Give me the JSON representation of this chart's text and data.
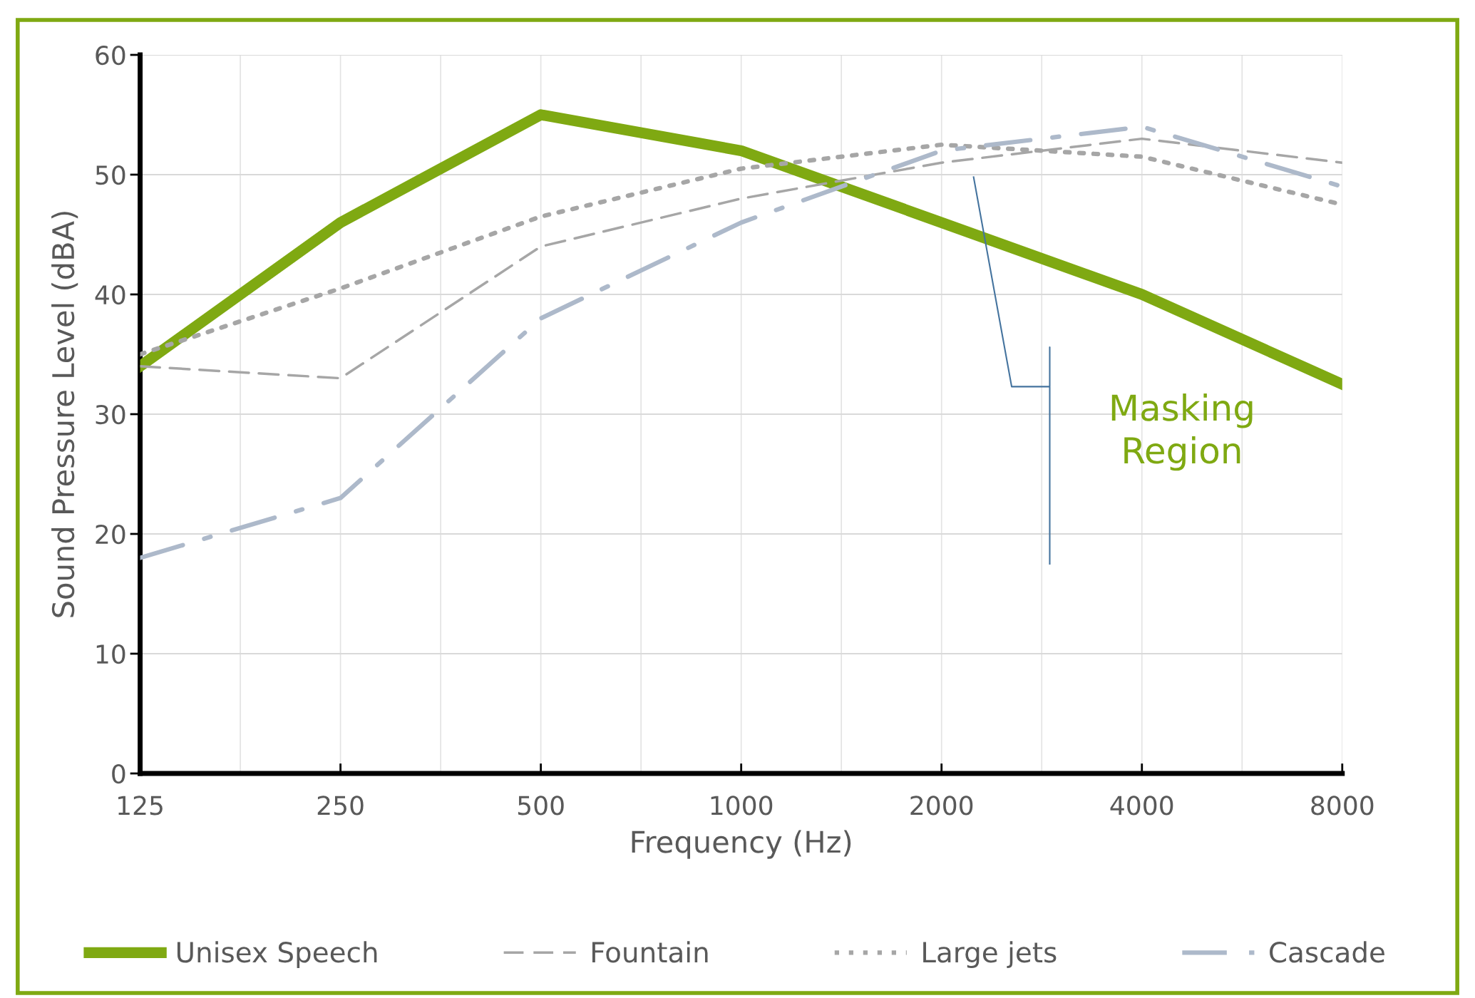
{
  "chart_data": {
    "type": "line",
    "xlabel": "Frequency (Hz)",
    "ylabel": "Sound Pressure Level (dBA)",
    "categories": [
      "125",
      "250",
      "500",
      "1000",
      "2000",
      "4000",
      "8000"
    ],
    "series": [
      {
        "name": "Unisex Speech",
        "color": "#7fa912",
        "line_style": "solid",
        "values": [
          34,
          46,
          55,
          52,
          46,
          40,
          32.5
        ]
      },
      {
        "name": "Fountain",
        "color": "#a6a6a6",
        "line_style": "dashed",
        "values": [
          34,
          33,
          44,
          48,
          51,
          53,
          51
        ]
      },
      {
        "name": "Large jets",
        "color": "#a6a6a6",
        "line_style": "dotted",
        "values": [
          35,
          40.5,
          46.5,
          50.5,
          52.5,
          51.5,
          47.5
        ]
      },
      {
        "name": "Cascade",
        "color": "#adb9ca",
        "line_style": "dashdot",
        "values": [
          18,
          23,
          38,
          46,
          52,
          54,
          49
        ]
      }
    ],
    "ylim": [
      0,
      60
    ],
    "yticks": [
      0,
      10,
      20,
      30,
      40,
      50,
      60
    ],
    "grid": true,
    "legend": "bottom",
    "marker": "none",
    "annotations": [
      "Masking\nRegion"
    ]
  }
}
